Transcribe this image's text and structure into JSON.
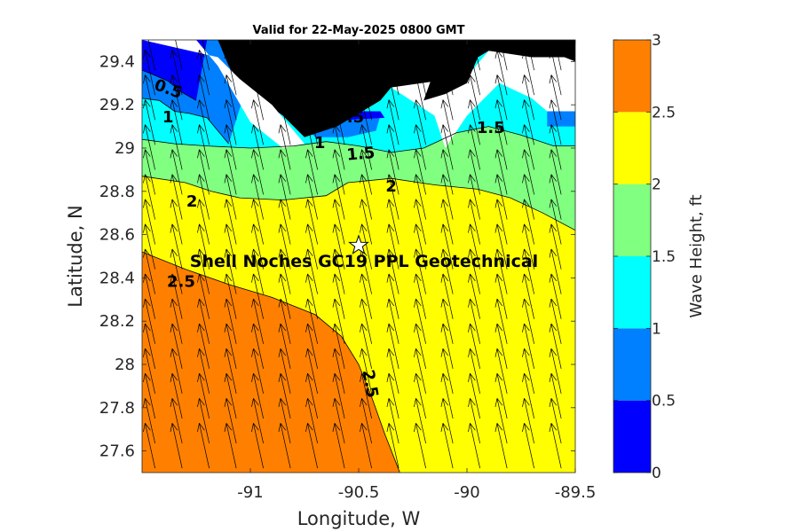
{
  "chart_data": {
    "type": "heatmap",
    "title": "Valid for 22-May-2025 0800 GMT",
    "xlabel": "Longitude, W",
    "ylabel": "Latitude, N",
    "xlim": [
      -91.5,
      -89.5
    ],
    "ylim": [
      27.5,
      29.5
    ],
    "x_ticks": [
      -91,
      -90.5,
      -90,
      -89.5
    ],
    "x_tick_labels": [
      "-91",
      "-90.5",
      "-90",
      "-89.5"
    ],
    "y_ticks": [
      27.6,
      27.8,
      28,
      28.2,
      28.4,
      28.6,
      28.8,
      29,
      29.2,
      29.4
    ],
    "y_tick_labels": [
      "27.6",
      "27.8",
      "28",
      "28.2",
      "28.4",
      "28.6",
      "28.8",
      "29",
      "29.2",
      "29.4"
    ],
    "colorbar": {
      "label": "Wave Height, ft",
      "range": [
        0,
        3
      ],
      "ticks": [
        0,
        0.5,
        1,
        1.5,
        2,
        2.5,
        3
      ],
      "tick_labels": [
        "0",
        "0.5",
        "1",
        "1.5",
        "2",
        "2.5",
        "3"
      ],
      "levels": [
        {
          "min": 0,
          "max": 0.5,
          "color": "#0000ff"
        },
        {
          "min": 0.5,
          "max": 1,
          "color": "#0080ff"
        },
        {
          "min": 1,
          "max": 1.5,
          "color": "#00ffff"
        },
        {
          "min": 1.5,
          "max": 2,
          "color": "#80ff80"
        },
        {
          "min": 2,
          "max": 2.5,
          "color": "#ffff00"
        },
        {
          "min": 2.5,
          "max": 3,
          "color": "#ff8000"
        }
      ]
    },
    "contours": [
      {
        "level": 2.5,
        "points": [
          [
            -91.5,
            28.52
          ],
          [
            -91.3,
            28.44
          ],
          [
            -91.1,
            28.37
          ],
          [
            -90.9,
            28.31
          ],
          [
            -90.7,
            28.23
          ],
          [
            -90.58,
            28.13
          ],
          [
            -90.5,
            28.0
          ],
          [
            -90.44,
            27.85
          ],
          [
            -90.38,
            27.68
          ],
          [
            -90.31,
            27.5
          ]
        ]
      },
      {
        "level": 2,
        "points": [
          [
            -91.5,
            28.87
          ],
          [
            -91.3,
            28.84
          ],
          [
            -91.18,
            28.8
          ],
          [
            -91.05,
            28.77
          ],
          [
            -90.85,
            28.76
          ],
          [
            -90.65,
            28.78
          ],
          [
            -90.55,
            28.84
          ],
          [
            -90.35,
            28.86
          ],
          [
            -90.15,
            28.83
          ],
          [
            -89.95,
            28.81
          ],
          [
            -89.8,
            28.77
          ],
          [
            -89.65,
            28.7
          ],
          [
            -89.5,
            28.62
          ]
        ]
      },
      {
        "level": 1.5,
        "points": [
          [
            -91.5,
            29.04
          ],
          [
            -91.35,
            29.02
          ],
          [
            -91.2,
            29.01
          ],
          [
            -91.0,
            29.0
          ],
          [
            -90.8,
            29.01
          ],
          [
            -90.65,
            29.03
          ],
          [
            -90.5,
            29.01
          ],
          [
            -90.35,
            28.98
          ],
          [
            -90.2,
            29.0
          ],
          [
            -90.05,
            29.07
          ],
          [
            -89.9,
            29.1
          ],
          [
            -89.75,
            29.06
          ],
          [
            -89.6,
            29.01
          ],
          [
            -89.5,
            29.01
          ]
        ]
      },
      {
        "level": 1,
        "points": [
          [
            -91.5,
            29.23
          ],
          [
            -91.42,
            29.22
          ],
          [
            -91.35,
            29.17
          ],
          [
            -91.28,
            29.16
          ],
          [
            -91.2,
            29.14
          ],
          [
            -91.1,
            29.02
          ]
        ]
      },
      {
        "level": 0.5,
        "points": [
          [
            -91.5,
            29.36
          ],
          [
            -91.45,
            29.34
          ],
          [
            -91.38,
            29.31
          ],
          [
            -91.32,
            29.26
          ],
          [
            -91.25,
            29.22
          ]
        ]
      }
    ],
    "contour_labels": [
      {
        "text": "0.5",
        "x": -91.38,
        "y": 29.27,
        "angle": 20
      },
      {
        "text": "1",
        "x": -91.38,
        "y": 29.14,
        "angle": 0
      },
      {
        "text": "0.5",
        "x": -90.54,
        "y": 29.14,
        "angle": 0
      },
      {
        "text": "1",
        "x": -90.68,
        "y": 29.02,
        "angle": 0
      },
      {
        "text": "1.5",
        "x": -90.49,
        "y": 28.97,
        "angle": -5
      },
      {
        "text": "1.5",
        "x": -89.89,
        "y": 29.09,
        "angle": 0
      },
      {
        "text": "2",
        "x": -91.27,
        "y": 28.75,
        "angle": 0
      },
      {
        "text": "2",
        "x": -90.35,
        "y": 28.82,
        "angle": 0
      },
      {
        "text": "2.5",
        "x": -91.32,
        "y": 28.38,
        "angle": 0
      },
      {
        "text": "2.5",
        "x": -90.45,
        "y": 27.91,
        "angle": 80
      }
    ],
    "site": {
      "label": "Shell Noches   GC19 PPL  Geotechnical",
      "lon": -90.5,
      "lat": 28.55
    },
    "wave_direction": {
      "dx_per_dy": 0.22,
      "description": "arrows point north-northwest"
    }
  }
}
